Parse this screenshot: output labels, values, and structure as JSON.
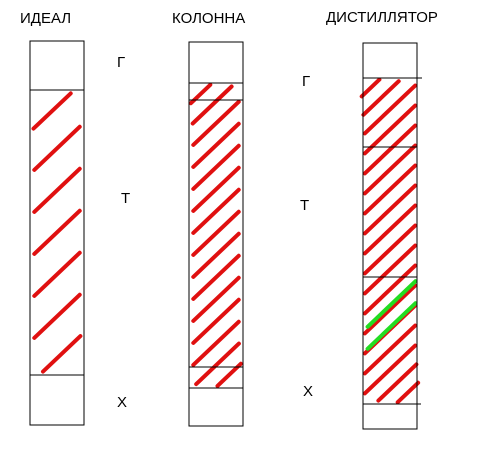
{
  "columns": [
    {
      "id": "ideal",
      "title": "ИДЕАЛ",
      "zone_labels": {
        "gas": "Г",
        "transition": "Т",
        "liquid": "Х"
      }
    },
    {
      "id": "column",
      "title": "КОЛОННА",
      "zone_labels": {
        "gas": "",
        "transition": "",
        "liquid": ""
      }
    },
    {
      "id": "distiller",
      "title": "ДИСТИЛЛЯТОР",
      "zone_labels": {
        "gas": "Г",
        "transition": "Т",
        "liquid": "Х"
      }
    }
  ],
  "colors": {
    "gas": "#1e88e5",
    "transition": "#e01010",
    "liquid": "#22dd22",
    "outline": "#000000"
  }
}
